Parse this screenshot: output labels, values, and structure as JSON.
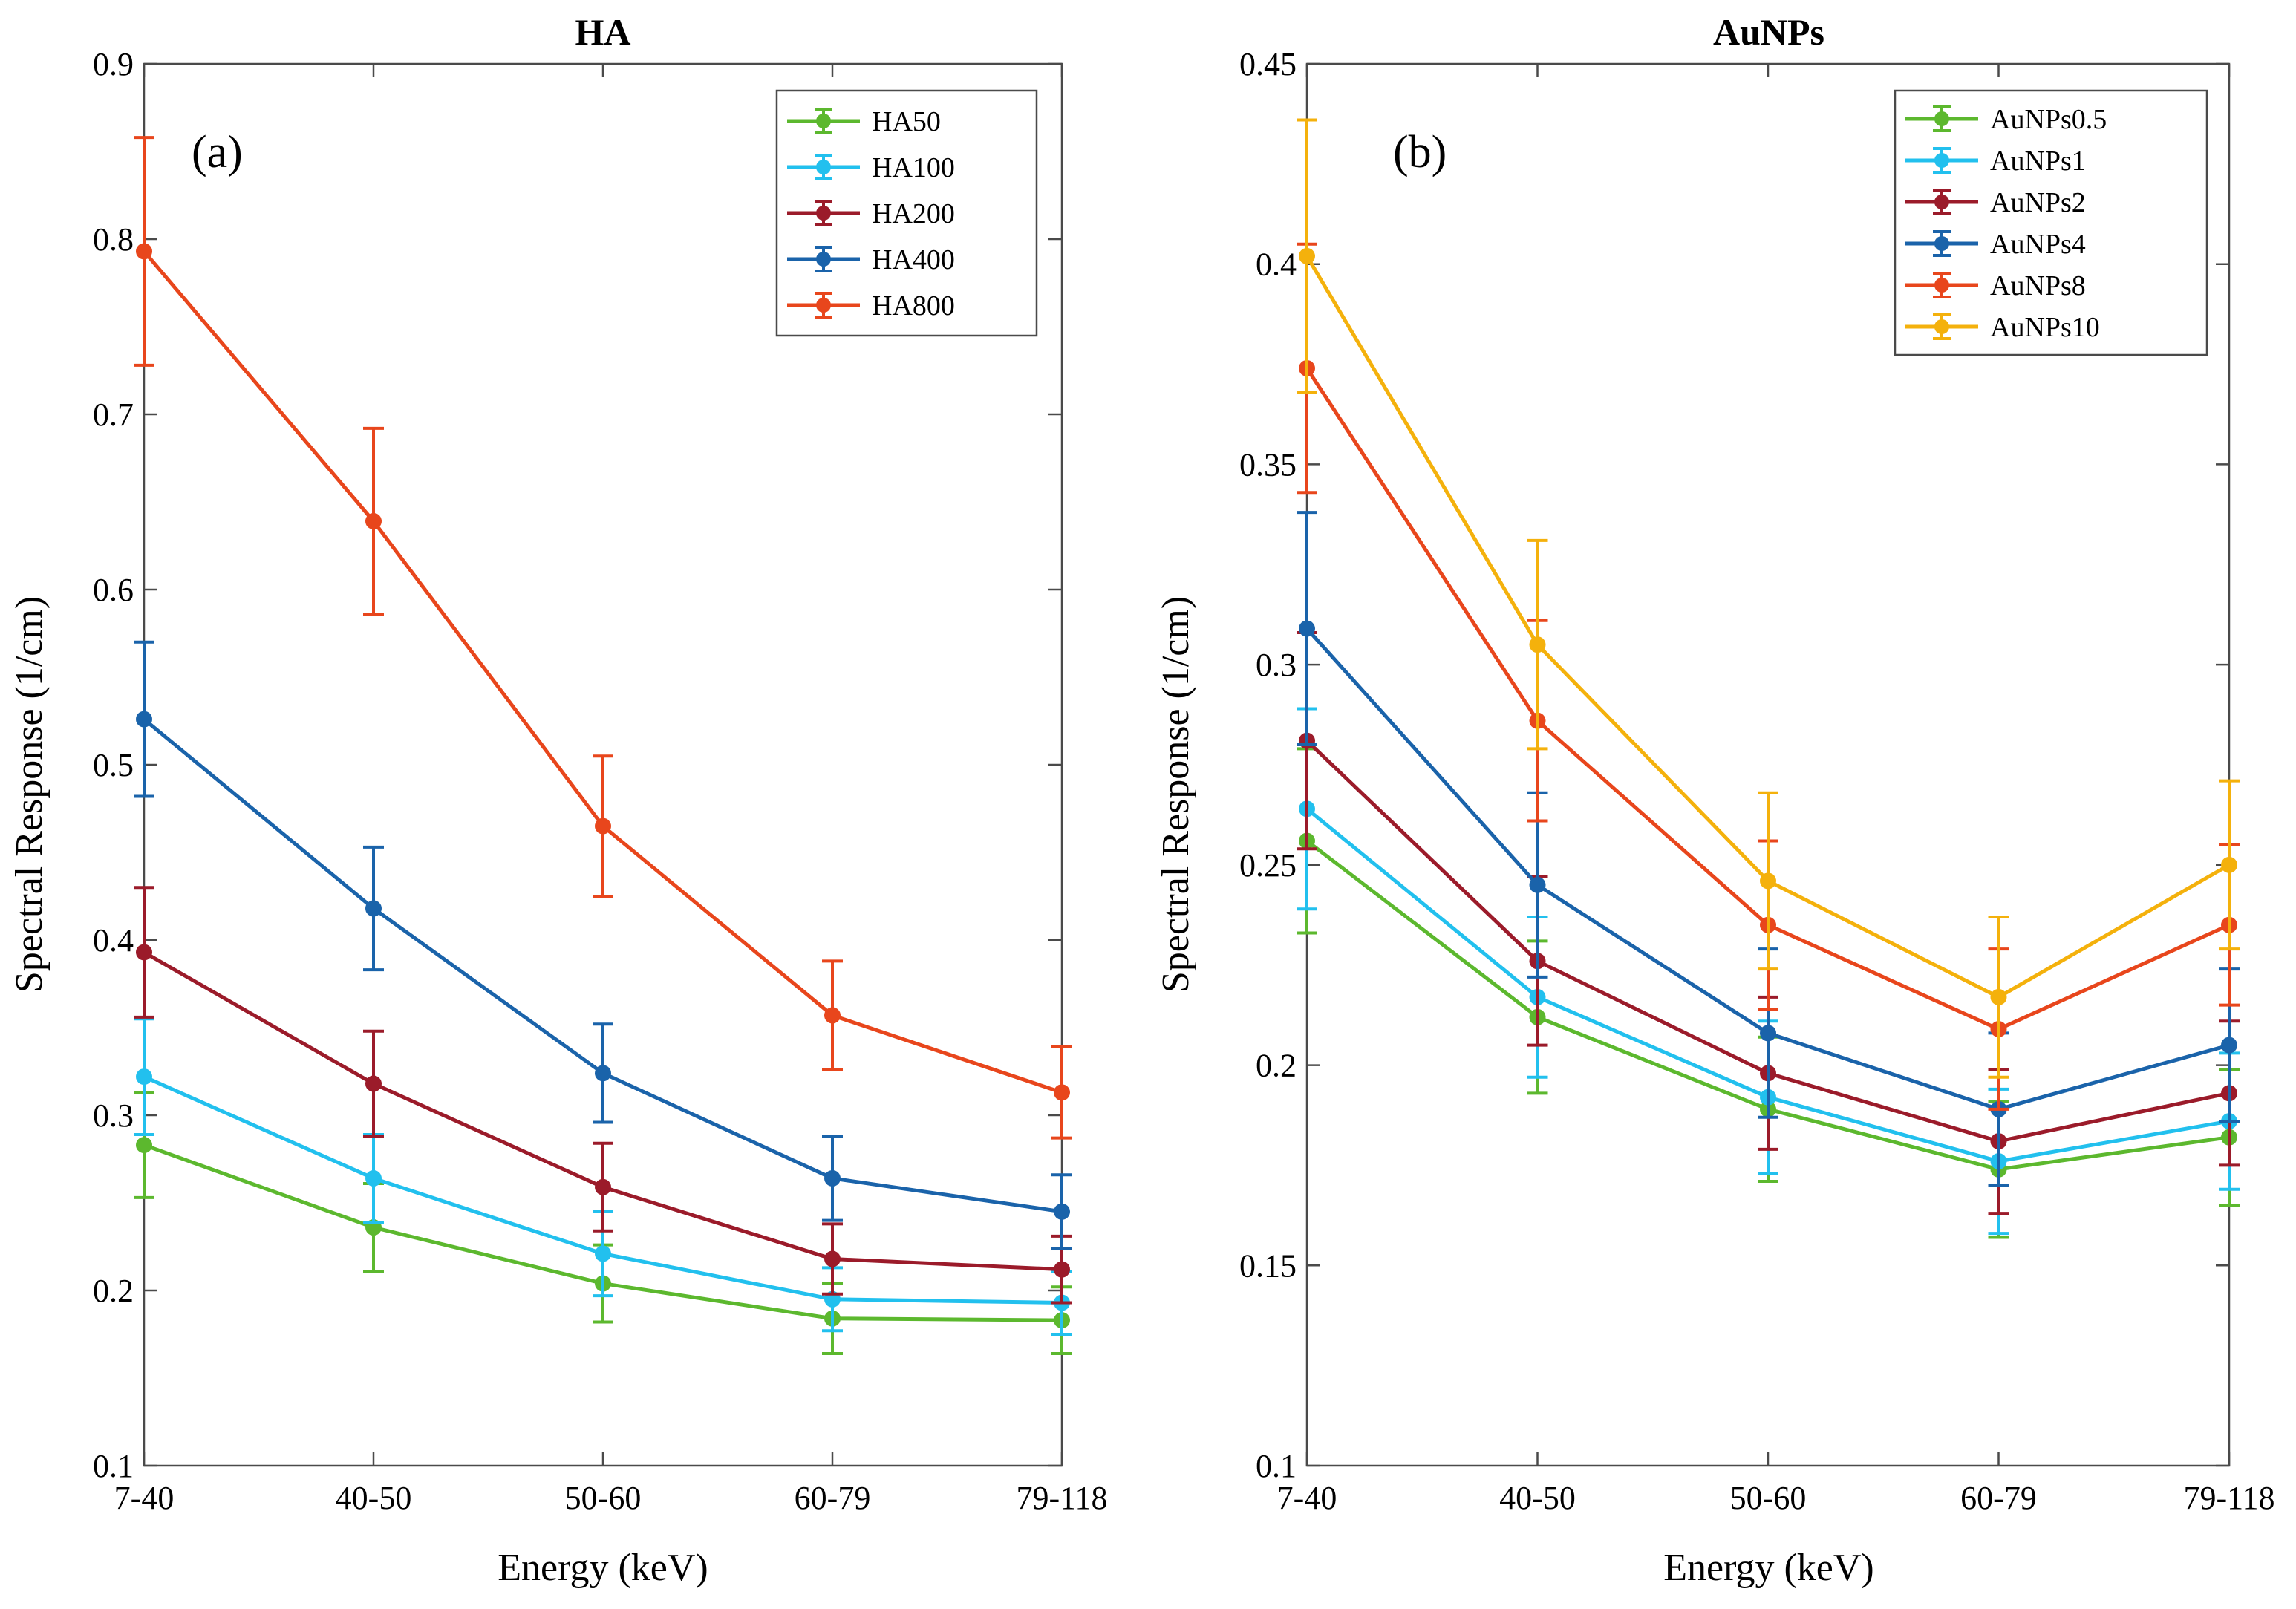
{
  "figure": "Spectral response versus energy bin for HA and AuNPs",
  "colors": {
    "green": "#5cb82e",
    "cyan": "#22c0ee",
    "darkred": "#9b1b2a",
    "blue": "#1a63aa",
    "orange": "#e8461c",
    "yellow": "#f4b10c"
  },
  "chart_data": [
    {
      "type": "line",
      "panel_label": "(a)",
      "title": "HA",
      "xlabel": "Energy (keV)",
      "ylabel": "Spectral Response (1/cm)",
      "categories": [
        "7-40",
        "40-50",
        "50-60",
        "60-79",
        "79-118"
      ],
      "ylim": [
        0.1,
        0.9
      ],
      "yticks": [
        0.1,
        0.2,
        0.3,
        0.4,
        0.5,
        0.6,
        0.7,
        0.8,
        0.9
      ],
      "ytick_labels": [
        "0.1",
        "0.2",
        "0.3",
        "0.4",
        "0.5",
        "0.6",
        "0.7",
        "0.8",
        "0.9"
      ],
      "grid": false,
      "legend_position": "top-right",
      "series": [
        {
          "name": "HA50",
          "color": "#5cb82e",
          "values": [
            0.283,
            0.236,
            0.204,
            0.184,
            0.183
          ],
          "errors": [
            0.03,
            0.025,
            0.022,
            0.02,
            0.019
          ]
        },
        {
          "name": "HA100",
          "color": "#22c0ee",
          "values": [
            0.322,
            0.264,
            0.221,
            0.195,
            0.193
          ],
          "errors": [
            0.033,
            0.025,
            0.024,
            0.018,
            0.018
          ]
        },
        {
          "name": "HA200",
          "color": "#9b1b2a",
          "values": [
            0.393,
            0.318,
            0.259,
            0.218,
            0.212
          ],
          "errors": [
            0.037,
            0.03,
            0.025,
            0.02,
            0.019
          ]
        },
        {
          "name": "HA400",
          "color": "#1a63aa",
          "values": [
            0.526,
            0.418,
            0.324,
            0.264,
            0.245
          ],
          "errors": [
            0.044,
            0.035,
            0.028,
            0.024,
            0.021
          ]
        },
        {
          "name": "HA800",
          "color": "#e8461c",
          "values": [
            0.793,
            0.639,
            0.465,
            0.357,
            0.313
          ],
          "errors": [
            0.065,
            0.053,
            0.04,
            0.031,
            0.026
          ]
        }
      ]
    },
    {
      "type": "line",
      "panel_label": "(b)",
      "title": "AuNPs",
      "xlabel": "Energy (keV)",
      "ylabel": "Spectral Response (1/cm)",
      "categories": [
        "7-40",
        "40-50",
        "50-60",
        "60-79",
        "79-118"
      ],
      "ylim": [
        0.1,
        0.45
      ],
      "yticks": [
        0.1,
        0.15,
        0.2,
        0.25,
        0.3,
        0.35,
        0.4,
        0.45
      ],
      "ytick_labels": [
        "0.1",
        "0.15",
        "0.2",
        "0.25",
        "0.3",
        "0.35",
        "0.4",
        "0.45"
      ],
      "grid": false,
      "legend_position": "top-right",
      "series": [
        {
          "name": "AuNPs0.5",
          "color": "#5cb82e",
          "values": [
            0.256,
            0.212,
            0.189,
            0.174,
            0.182
          ],
          "errors": [
            0.023,
            0.019,
            0.018,
            0.017,
            0.017
          ]
        },
        {
          "name": "AuNPs1",
          "color": "#22c0ee",
          "values": [
            0.264,
            0.217,
            0.192,
            0.176,
            0.186
          ],
          "errors": [
            0.025,
            0.02,
            0.019,
            0.018,
            0.017
          ]
        },
        {
          "name": "AuNPs2",
          "color": "#9b1b2a",
          "values": [
            0.281,
            0.226,
            0.198,
            0.181,
            0.193
          ],
          "errors": [
            0.027,
            0.021,
            0.019,
            0.018,
            0.018
          ]
        },
        {
          "name": "AuNPs4",
          "color": "#1a63aa",
          "values": [
            0.309,
            0.245,
            0.208,
            0.189,
            0.205
          ],
          "errors": [
            0.029,
            0.023,
            0.021,
            0.019,
            0.019
          ]
        },
        {
          "name": "AuNPs8",
          "color": "#e8461c",
          "values": [
            0.374,
            0.286,
            0.235,
            0.209,
            0.235
          ],
          "errors": [
            0.031,
            0.025,
            0.021,
            0.02,
            0.02
          ]
        },
        {
          "name": "AuNPs10",
          "color": "#f4b10c",
          "values": [
            0.402,
            0.305,
            0.246,
            0.217,
            0.25
          ],
          "errors": [
            0.034,
            0.026,
            0.022,
            0.02,
            0.021
          ]
        }
      ]
    }
  ]
}
